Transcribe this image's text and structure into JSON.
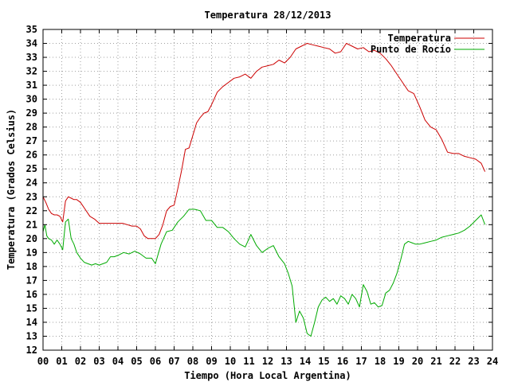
{
  "chart_data": {
    "type": "line",
    "title": "Temperatura 28/12/2013",
    "xlabel": "Tiempo (Hora Local Argentina)",
    "ylabel": "Temperatura (Grados Celsius)",
    "xlim": [
      0,
      24
    ],
    "ylim": [
      12,
      35
    ],
    "grid": true,
    "legend_position": "top-right",
    "x_ticks": [
      "00",
      "01",
      "02",
      "03",
      "04",
      "05",
      "06",
      "07",
      "08",
      "09",
      "10",
      "11",
      "12",
      "13",
      "14",
      "15",
      "16",
      "17",
      "18",
      "19",
      "20",
      "21",
      "22",
      "23",
      "24"
    ],
    "y_ticks": [
      "12",
      "13",
      "14",
      "15",
      "16",
      "17",
      "18",
      "19",
      "20",
      "21",
      "22",
      "23",
      "24",
      "25",
      "26",
      "27",
      "28",
      "29",
      "30",
      "31",
      "32",
      "33",
      "34",
      "35"
    ],
    "series": [
      {
        "name": "Temperatura",
        "color": "#cc0000",
        "x": [
          0.0,
          0.15,
          0.3,
          0.45,
          0.6,
          0.75,
          0.9,
          1.05,
          1.2,
          1.35,
          1.5,
          1.65,
          1.8,
          2.0,
          2.25,
          2.5,
          2.75,
          3.0,
          3.25,
          3.5,
          3.75,
          4.0,
          4.25,
          4.5,
          4.75,
          5.0,
          5.2,
          5.4,
          5.6,
          5.8,
          6.0,
          6.2,
          6.4,
          6.6,
          6.8,
          7.0,
          7.2,
          7.4,
          7.6,
          7.8,
          8.0,
          8.2,
          8.4,
          8.6,
          8.8,
          9.0,
          9.3,
          9.6,
          9.9,
          10.2,
          10.5,
          10.8,
          11.1,
          11.4,
          11.7,
          12.0,
          12.3,
          12.6,
          12.9,
          13.2,
          13.5,
          13.8,
          14.1,
          14.4,
          14.7,
          15.0,
          15.3,
          15.6,
          15.9,
          16.2,
          16.5,
          16.8,
          17.1,
          17.4,
          17.7,
          18.0,
          18.3,
          18.6,
          18.9,
          19.2,
          19.5,
          19.8,
          20.1,
          20.4,
          20.7,
          21.0,
          21.3,
          21.6,
          21.9,
          22.2,
          22.5,
          22.8,
          23.1,
          23.4,
          23.6
        ],
        "values": [
          23.0,
          22.6,
          22.1,
          21.8,
          21.7,
          21.7,
          21.6,
          21.2,
          22.7,
          23.0,
          22.9,
          22.8,
          22.8,
          22.6,
          22.1,
          21.6,
          21.4,
          21.1,
          21.1,
          21.1,
          21.1,
          21.1,
          21.1,
          21.0,
          20.9,
          20.9,
          20.7,
          20.2,
          20.0,
          20.0,
          20.0,
          20.3,
          21.0,
          22.0,
          22.3,
          22.4,
          23.6,
          24.9,
          26.4,
          26.5,
          27.4,
          28.3,
          28.7,
          29.0,
          29.1,
          29.6,
          30.5,
          30.9,
          31.2,
          31.5,
          31.6,
          31.8,
          31.5,
          32.0,
          32.3,
          32.4,
          32.5,
          32.8,
          32.6,
          33.0,
          33.6,
          33.8,
          34.0,
          33.9,
          33.8,
          33.7,
          33.6,
          33.3,
          33.4,
          34.0,
          33.8,
          33.6,
          33.7,
          33.4,
          33.5,
          33.3,
          32.9,
          32.4,
          31.8,
          31.2,
          30.6,
          30.4,
          29.5,
          28.5,
          28.0,
          27.8,
          27.1,
          26.2,
          26.1,
          26.1,
          25.9,
          25.8,
          25.7,
          25.4,
          24.8
        ]
      },
      {
        "name": "Punto de Rocío",
        "color": "#00aa00",
        "x": [
          0.0,
          0.1,
          0.2,
          0.3,
          0.45,
          0.6,
          0.75,
          0.9,
          1.05,
          1.2,
          1.35,
          1.5,
          1.65,
          1.8,
          2.0,
          2.2,
          2.4,
          2.6,
          2.8,
          3.0,
          3.2,
          3.4,
          3.6,
          3.8,
          4.0,
          4.3,
          4.6,
          4.9,
          5.2,
          5.5,
          5.8,
          6.0,
          6.3,
          6.6,
          6.9,
          7.2,
          7.5,
          7.8,
          8.1,
          8.4,
          8.7,
          9.0,
          9.3,
          9.6,
          9.9,
          10.2,
          10.5,
          10.8,
          11.1,
          11.4,
          11.7,
          12.0,
          12.3,
          12.6,
          12.9,
          13.1,
          13.3,
          13.5,
          13.7,
          13.9,
          14.1,
          14.3,
          14.5,
          14.7,
          14.9,
          15.1,
          15.3,
          15.5,
          15.7,
          15.9,
          16.1,
          16.3,
          16.5,
          16.7,
          16.9,
          17.1,
          17.3,
          17.5,
          17.7,
          17.9,
          18.1,
          18.3,
          18.5,
          18.7,
          18.9,
          19.1,
          19.3,
          19.5,
          19.7,
          19.9,
          20.1,
          20.4,
          20.7,
          21.0,
          21.3,
          21.6,
          21.9,
          22.2,
          22.5,
          22.8,
          23.1,
          23.4,
          23.6
        ],
        "values": [
          20.5,
          21.0,
          20.2,
          20.0,
          19.9,
          19.6,
          19.9,
          19.6,
          19.2,
          21.2,
          21.4,
          20.0,
          19.6,
          19.0,
          18.6,
          18.3,
          18.2,
          18.1,
          18.2,
          18.1,
          18.2,
          18.3,
          18.7,
          18.7,
          18.8,
          19.0,
          18.9,
          19.1,
          18.9,
          18.6,
          18.6,
          18.2,
          19.6,
          20.5,
          20.6,
          21.2,
          21.6,
          22.1,
          22.1,
          22.0,
          21.3,
          21.3,
          20.8,
          20.8,
          20.5,
          20.0,
          19.6,
          19.4,
          20.3,
          19.5,
          19.0,
          19.3,
          19.5,
          18.7,
          18.2,
          17.5,
          16.6,
          14.0,
          14.8,
          14.3,
          13.2,
          13.0,
          14.0,
          15.1,
          15.6,
          15.8,
          15.5,
          15.7,
          15.3,
          15.9,
          15.7,
          15.3,
          16.0,
          15.7,
          15.1,
          16.7,
          16.2,
          15.3,
          15.4,
          15.1,
          15.2,
          16.1,
          16.3,
          16.8,
          17.5,
          18.5,
          19.6,
          19.8,
          19.7,
          19.6,
          19.6,
          19.7,
          19.8,
          19.9,
          20.1,
          20.2,
          20.3,
          20.4,
          20.6,
          20.9,
          21.3,
          21.7,
          21.0
        ]
      }
    ]
  }
}
